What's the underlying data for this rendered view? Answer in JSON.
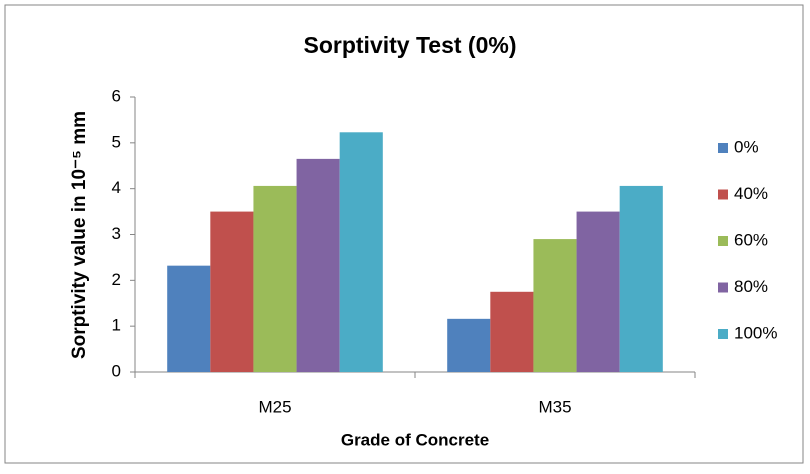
{
  "chart_data": {
    "type": "bar",
    "title": "Sorptivity Test (0%)",
    "xlabel": "Grade of Concrete",
    "ylabel": "Sorptivity value in 10⁻⁵ mm",
    "categories": [
      "M25",
      "M35"
    ],
    "series": [
      {
        "name": "0%",
        "color": "#4f81bd",
        "values": [
          2.32,
          1.16
        ]
      },
      {
        "name": "40%",
        "color": "#c0504d",
        "values": [
          3.5,
          1.75
        ]
      },
      {
        "name": "60%",
        "color": "#9bbb59",
        "values": [
          4.06,
          2.9
        ]
      },
      {
        "name": "80%",
        "color": "#8064a2",
        "values": [
          4.65,
          3.5
        ]
      },
      {
        "name": "100%",
        "color": "#4bacc6",
        "values": [
          5.23,
          4.06
        ]
      }
    ],
    "ylim": [
      0,
      6
    ],
    "yticks": [
      0,
      1,
      2,
      3,
      4,
      5,
      6
    ],
    "grid": false,
    "legend": "right"
  }
}
